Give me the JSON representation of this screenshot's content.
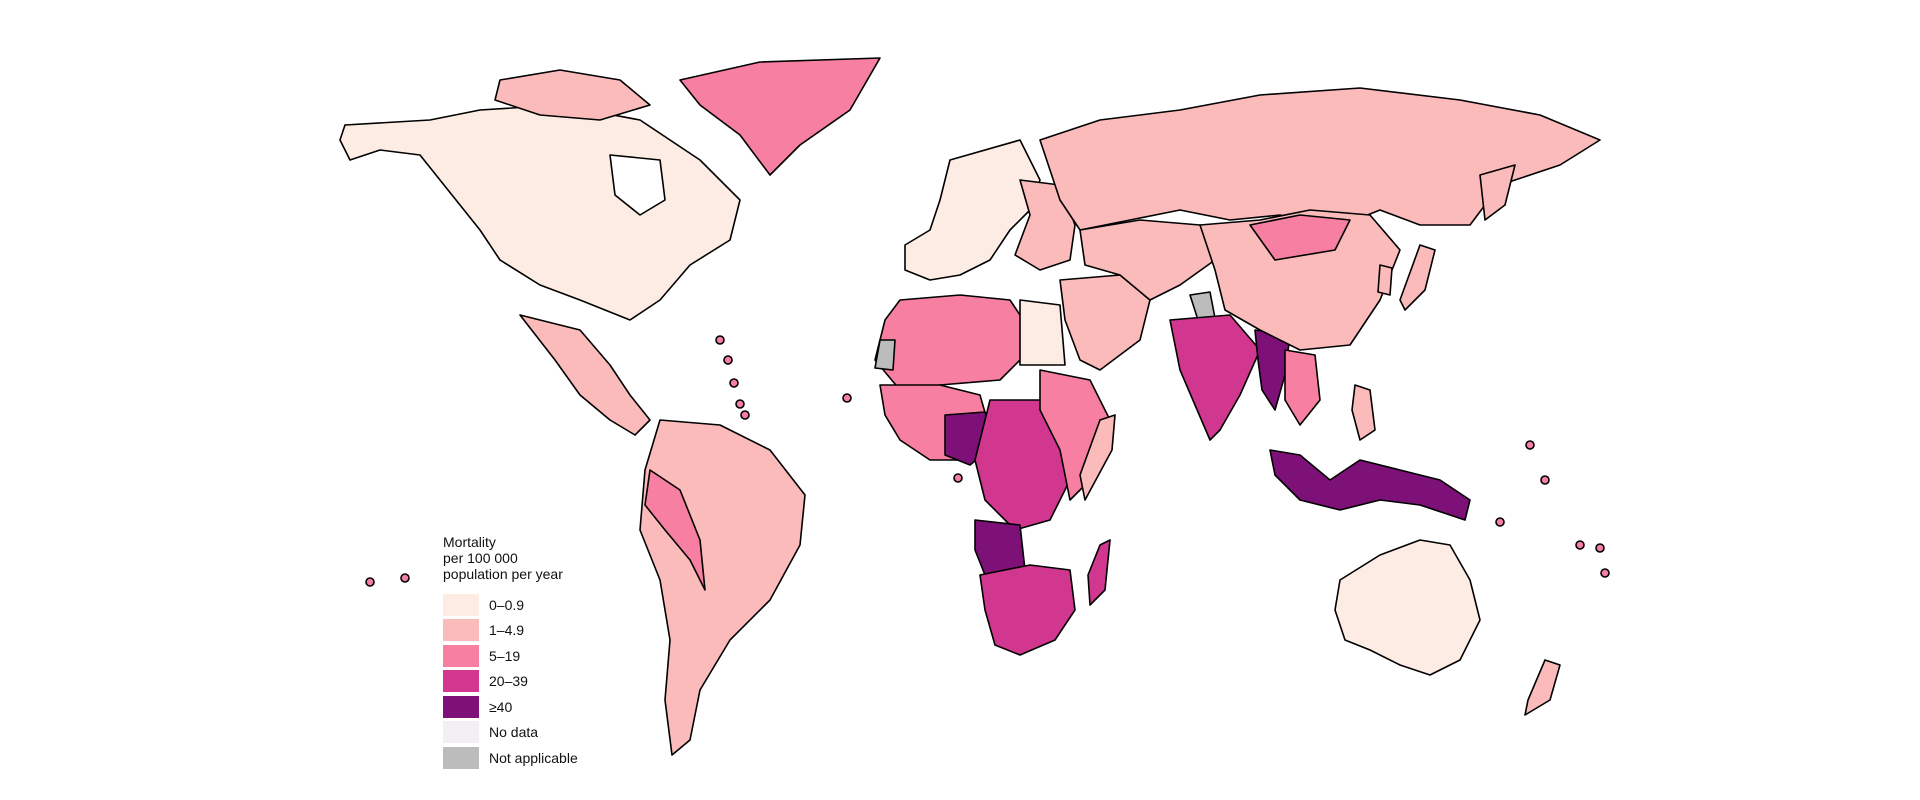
{
  "legend": {
    "title": "Mortality\nper 100 000\npopulation per year",
    "items": [
      {
        "label": "0–0.9",
        "color": "#fdece4"
      },
      {
        "label": "1–4.9",
        "color": "#fbbbbb"
      },
      {
        "label": "5–19",
        "color": "#f77fa2"
      },
      {
        "label": "20–39",
        "color": "#d1378f"
      },
      {
        "label": "≥40",
        "color": "#7d1177"
      },
      {
        "label": "No data",
        "color": "#f2f0f2"
      },
      {
        "label": "Not applicable",
        "color": "#bcbcbc"
      }
    ]
  },
  "regions": [
    {
      "name": "north-america",
      "band": "0–0.9"
    },
    {
      "name": "greenland",
      "band": "5–19"
    },
    {
      "name": "mexico-central-america",
      "band": "1–4.9"
    },
    {
      "name": "south-america",
      "band": "1–4.9"
    },
    {
      "name": "andes",
      "band": "5–19"
    },
    {
      "name": "western-europe",
      "band": "0–0.9"
    },
    {
      "name": "eastern-europe",
      "band": "1–4.9"
    },
    {
      "name": "russia",
      "band": "1–4.9"
    },
    {
      "name": "north-africa",
      "band": "5–19"
    },
    {
      "name": "egypt",
      "band": "0–0.9"
    },
    {
      "name": "west-africa",
      "band": "5–19"
    },
    {
      "name": "nigeria",
      "band": "≥40"
    },
    {
      "name": "central-africa",
      "band": "20–39"
    },
    {
      "name": "east-africa",
      "band": "5–19"
    },
    {
      "name": "angola",
      "band": "≥40"
    },
    {
      "name": "southern-africa",
      "band": "20–39"
    },
    {
      "name": "madagascar",
      "band": "20–39"
    },
    {
      "name": "middle-east",
      "band": "1–4.9"
    },
    {
      "name": "india",
      "band": "20–39"
    },
    {
      "name": "myanmar",
      "band": "≥40"
    },
    {
      "name": "china",
      "band": "1–4.9"
    },
    {
      "name": "mongolia",
      "band": "5–19"
    },
    {
      "name": "southeast-asia",
      "band": "5–19"
    },
    {
      "name": "indonesia",
      "band": "≥40"
    },
    {
      "name": "australia",
      "band": "0–0.9"
    },
    {
      "name": "kashmir",
      "band": "Not applicable"
    },
    {
      "name": "western-sahara",
      "band": "Not applicable"
    }
  ]
}
